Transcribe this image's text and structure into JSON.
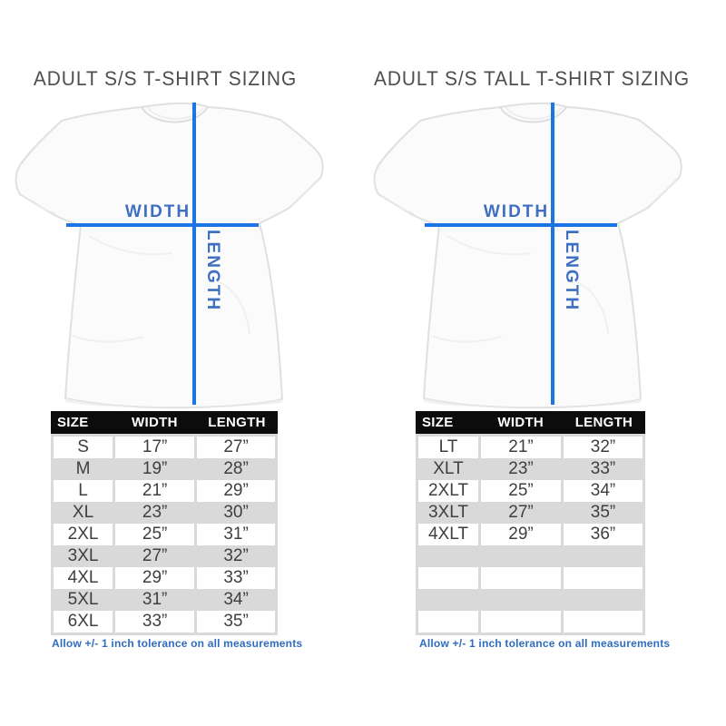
{
  "colors": {
    "measure_line_blue": "#1b76e4",
    "measure_label_blue": "#3f6fc3",
    "note_blue": "#2f6cc1",
    "table_header_bg": "#0c0c0c",
    "table_header_text": "#ffffff",
    "table_row_gray": "#d9d9d9",
    "table_text": "#3f3f3f",
    "title_gray": "#4e4e4e"
  },
  "panels": [
    {
      "title": "ADULT S/S T-SHIRT SIZING",
      "diagram": {
        "width_label": "WIDTH",
        "length_label": "LENGTH"
      },
      "table": {
        "columns": [
          "SIZE",
          "WIDTH",
          "LENGTH"
        ],
        "rows": [
          [
            "S",
            "17”",
            "27”"
          ],
          [
            "M",
            "19”",
            "28”"
          ],
          [
            "L",
            "21”",
            "29”"
          ],
          [
            "XL",
            "23”",
            "30”"
          ],
          [
            "2XL",
            "25”",
            "31”"
          ],
          [
            "3XL",
            "27”",
            "32”"
          ],
          [
            "4XL",
            "29”",
            "33”"
          ],
          [
            "5XL",
            "31”",
            "34”"
          ],
          [
            "6XL",
            "33”",
            "35”"
          ]
        ]
      },
      "note": "Allow +/- 1 inch tolerance on all measurements"
    },
    {
      "title": "ADULT S/S TALL T-SHIRT SIZING",
      "diagram": {
        "width_label": "WIDTH",
        "length_label": "LENGTH"
      },
      "table": {
        "columns": [
          "SIZE",
          "WIDTH",
          "LENGTH"
        ],
        "rows": [
          [
            "LT",
            "21”",
            "32”"
          ],
          [
            "XLT",
            "23”",
            "33”"
          ],
          [
            "2XLT",
            "25”",
            "34”"
          ],
          [
            "3XLT",
            "27”",
            "35”"
          ],
          [
            "4XLT",
            "29”",
            "36”"
          ],
          [
            "",
            "",
            ""
          ],
          [
            "",
            "",
            ""
          ],
          [
            "",
            "",
            ""
          ],
          [
            "",
            "",
            ""
          ]
        ]
      },
      "note": "Allow +/- 1 inch tolerance on all measurements"
    }
  ],
  "chart_data": [
    {
      "type": "table",
      "title": "ADULT S/S T-SHIRT SIZING",
      "columns": [
        "SIZE",
        "WIDTH",
        "LENGTH"
      ],
      "rows": [
        [
          "S",
          "17”",
          "27”"
        ],
        [
          "M",
          "19”",
          "28”"
        ],
        [
          "L",
          "21”",
          "29”"
        ],
        [
          "XL",
          "23”",
          "30”"
        ],
        [
          "2XL",
          "25”",
          "31”"
        ],
        [
          "3XL",
          "27”",
          "32”"
        ],
        [
          "4XL",
          "29”",
          "33”"
        ],
        [
          "5XL",
          "31”",
          "34”"
        ],
        [
          "6XL",
          "33”",
          "35”"
        ]
      ],
      "note": "Allow +/- 1 inch tolerance on all measurements"
    },
    {
      "type": "table",
      "title": "ADULT S/S TALL T-SHIRT SIZING",
      "columns": [
        "SIZE",
        "WIDTH",
        "LENGTH"
      ],
      "rows": [
        [
          "LT",
          "21”",
          "32”"
        ],
        [
          "XLT",
          "23”",
          "33”"
        ],
        [
          "2XLT",
          "25”",
          "34”"
        ],
        [
          "3XLT",
          "27”",
          "35”"
        ],
        [
          "4XLT",
          "29”",
          "36”"
        ]
      ],
      "note": "Allow +/- 1 inch tolerance on all measurements"
    }
  ]
}
